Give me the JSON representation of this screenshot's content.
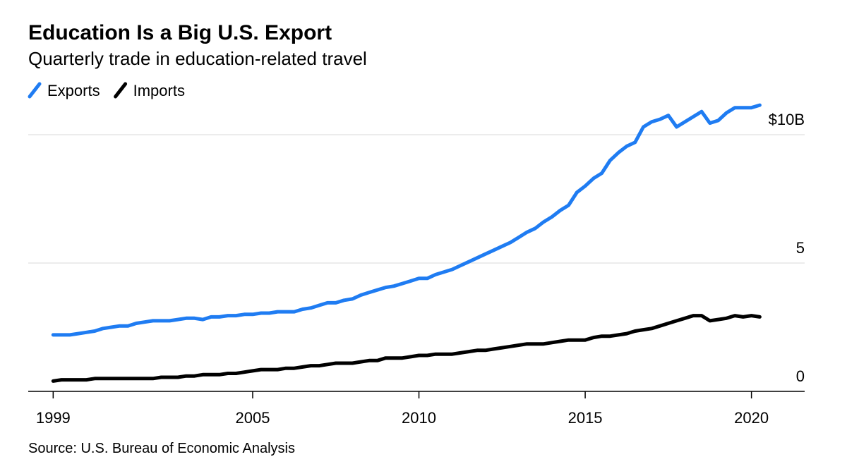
{
  "chart_data": {
    "type": "line",
    "title": "Education Is a Big U.S. Export",
    "subtitle": "Quarterly trade in education-related travel",
    "source": "Source: U.S. Bureau of Economic Analysis",
    "x": [
      1999,
      1999.25,
      1999.5,
      1999.75,
      2000,
      2000.25,
      2000.5,
      2000.75,
      2001,
      2001.25,
      2001.5,
      2001.75,
      2002,
      2002.25,
      2002.5,
      2002.75,
      2003,
      2003.25,
      2003.5,
      2003.75,
      2004,
      2004.25,
      2004.5,
      2004.75,
      2005,
      2005.25,
      2005.5,
      2005.75,
      2006,
      2006.25,
      2006.5,
      2006.75,
      2007,
      2007.25,
      2007.5,
      2007.75,
      2008,
      2008.25,
      2008.5,
      2008.75,
      2009,
      2009.25,
      2009.5,
      2009.75,
      2010,
      2010.25,
      2010.5,
      2010.75,
      2011,
      2011.25,
      2011.5,
      2011.75,
      2012,
      2012.25,
      2012.5,
      2012.75,
      2013,
      2013.25,
      2013.5,
      2013.75,
      2014,
      2014.25,
      2014.5,
      2014.75,
      2015,
      2015.25,
      2015.5,
      2015.75,
      2016,
      2016.25,
      2016.5,
      2016.75,
      2017,
      2017.25,
      2017.5,
      2017.75,
      2018,
      2018.25,
      2018.5,
      2018.75,
      2019,
      2019.25,
      2019.5,
      2019.75,
      2020,
      2020.25
    ],
    "series": [
      {
        "name": "Exports",
        "color": "#1f7cf2",
        "values": [
          2.2,
          2.2,
          2.2,
          2.25,
          2.3,
          2.35,
          2.45,
          2.5,
          2.55,
          2.55,
          2.65,
          2.7,
          2.75,
          2.75,
          2.75,
          2.8,
          2.85,
          2.85,
          2.8,
          2.9,
          2.9,
          2.95,
          2.95,
          3.0,
          3.0,
          3.05,
          3.05,
          3.1,
          3.1,
          3.1,
          3.2,
          3.25,
          3.35,
          3.45,
          3.45,
          3.55,
          3.6,
          3.75,
          3.85,
          3.95,
          4.05,
          4.1,
          4.2,
          4.3,
          4.4,
          4.4,
          4.55,
          4.65,
          4.75,
          4.9,
          5.05,
          5.2,
          5.35,
          5.5,
          5.65,
          5.8,
          6.0,
          6.2,
          6.35,
          6.6,
          6.8,
          7.05,
          7.25,
          7.75,
          8.0,
          8.3,
          8.5,
          9.0,
          9.3,
          9.55,
          9.7,
          10.3,
          10.5,
          10.6,
          10.75,
          10.3,
          10.5,
          10.7,
          10.9,
          10.45,
          10.55,
          10.85,
          11.05,
          11.05,
          11.05,
          11.15
        ]
      },
      {
        "name": "Imports",
        "color": "#000000",
        "values": [
          0.4,
          0.45,
          0.45,
          0.45,
          0.45,
          0.5,
          0.5,
          0.5,
          0.5,
          0.5,
          0.5,
          0.5,
          0.5,
          0.55,
          0.55,
          0.55,
          0.6,
          0.6,
          0.65,
          0.65,
          0.65,
          0.7,
          0.7,
          0.75,
          0.8,
          0.85,
          0.85,
          0.85,
          0.9,
          0.9,
          0.95,
          1.0,
          1.0,
          1.05,
          1.1,
          1.1,
          1.1,
          1.15,
          1.2,
          1.2,
          1.3,
          1.3,
          1.3,
          1.35,
          1.4,
          1.4,
          1.45,
          1.45,
          1.45,
          1.5,
          1.55,
          1.6,
          1.6,
          1.65,
          1.7,
          1.75,
          1.8,
          1.85,
          1.85,
          1.85,
          1.9,
          1.95,
          2.0,
          2.0,
          2.0,
          2.1,
          2.15,
          2.15,
          2.2,
          2.25,
          2.35,
          2.4,
          2.45,
          2.55,
          2.65,
          2.75,
          2.85,
          2.95,
          2.95,
          2.75,
          2.8,
          2.85,
          2.95,
          2.9,
          2.95,
          2.9
        ]
      }
    ],
    "xlim": [
      1998.25,
      2021.6
    ],
    "xticks": [
      1999,
      2005,
      2010,
      2015,
      2020
    ],
    "ylim": [
      0,
      11.4
    ],
    "yticks": [
      0,
      5,
      {
        "value": 10,
        "label": "$10B"
      }
    ],
    "grid": true
  }
}
